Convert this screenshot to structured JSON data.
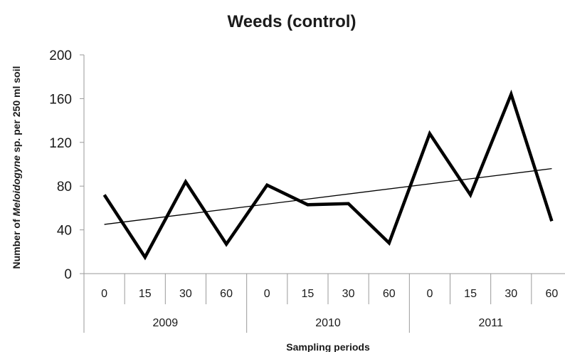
{
  "chart_data": {
    "type": "line",
    "title": "Weeds (control)",
    "ylabel_parts": [
      "Number of ",
      "Meloidogyne",
      " sp. per 250 ml soil"
    ],
    "xlabel": "Sampling periods",
    "ylim": [
      0,
      200
    ],
    "yticks": [
      0,
      40,
      80,
      120,
      160,
      200
    ],
    "categories": [
      "0",
      "15",
      "30",
      "60",
      "0",
      "15",
      "30",
      "60",
      "0",
      "15",
      "30",
      "60"
    ],
    "groups": [
      {
        "label": "2009",
        "count": 4
      },
      {
        "label": "2010",
        "count": 4
      },
      {
        "label": "2011",
        "count": 4
      }
    ],
    "series": [
      {
        "values": [
          72,
          15,
          84,
          27,
          81,
          63,
          64,
          28,
          128,
          72,
          164,
          48
        ]
      }
    ],
    "trendline": {
      "type": "linear",
      "start": 45,
      "end": 96
    },
    "grid": false,
    "legend": "none",
    "colors": {
      "series": "#000000",
      "axis": "#9a9a9a",
      "text": "#1a1a1a"
    }
  }
}
